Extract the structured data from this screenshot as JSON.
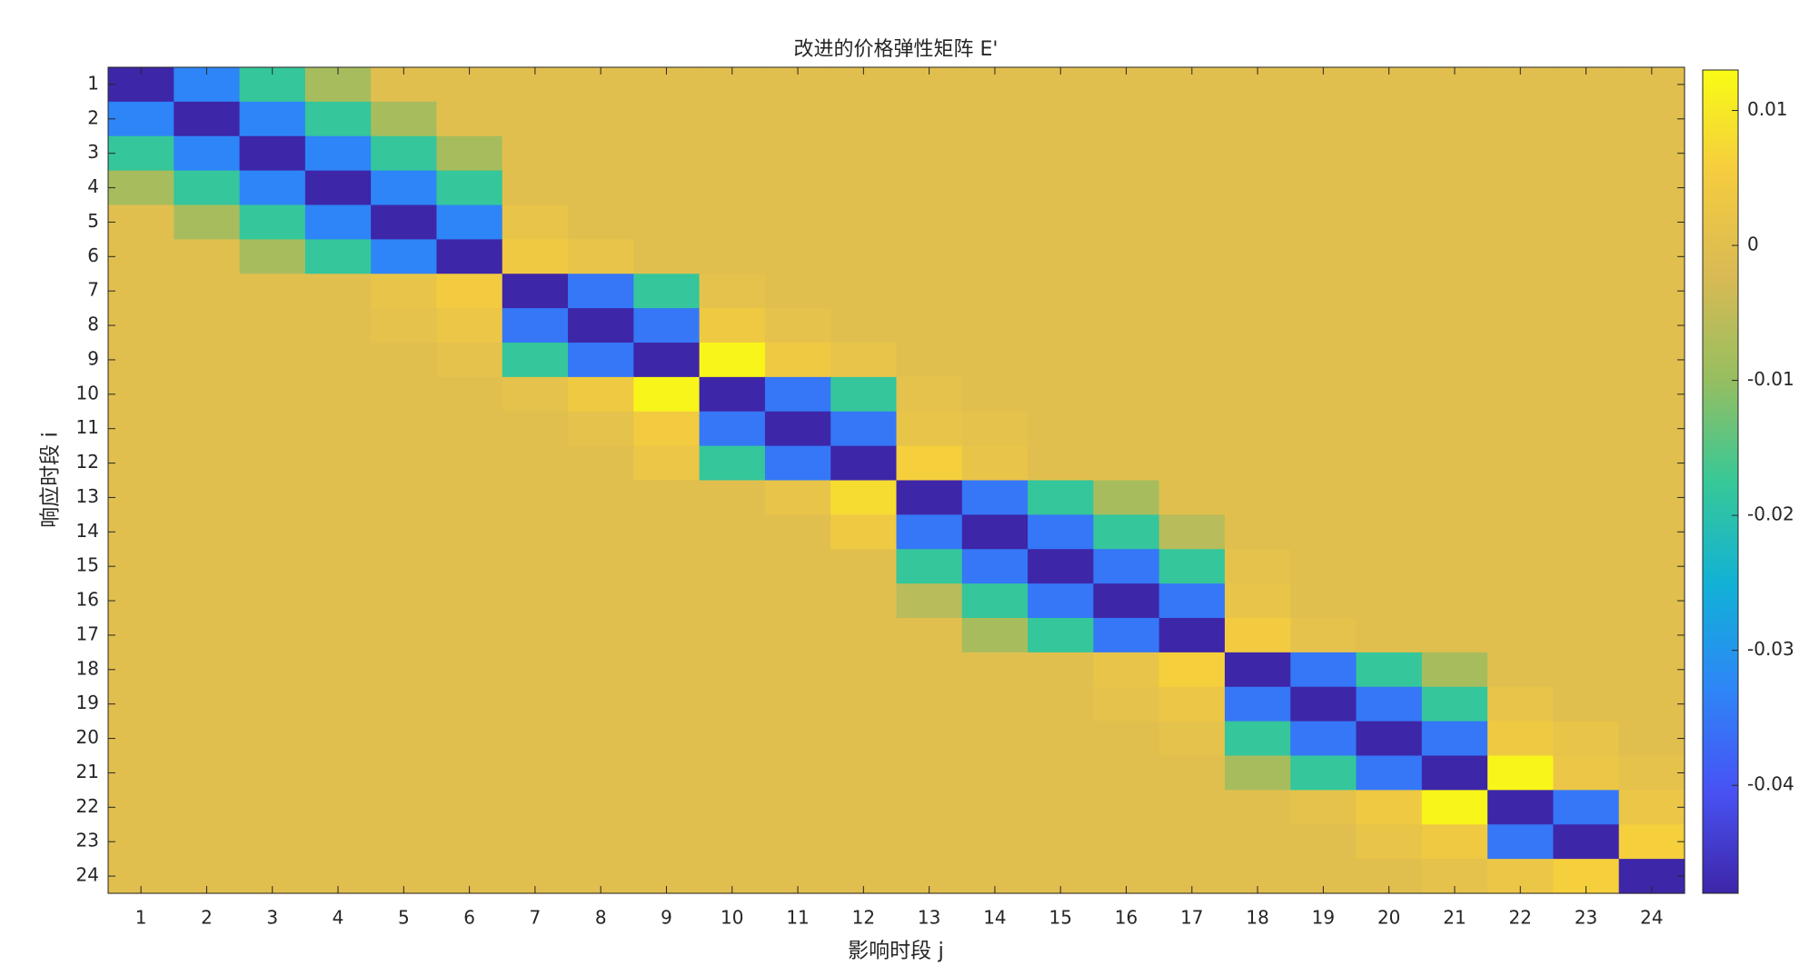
{
  "chart_data": {
    "type": "heatmap",
    "title": "改进的价格弹性矩阵 E'",
    "x_label": "影响时段 j",
    "y_label": "响应时段 i",
    "x_categories": [
      1,
      2,
      3,
      4,
      5,
      6,
      7,
      8,
      9,
      10,
      11,
      12,
      13,
      14,
      15,
      16,
      17,
      18,
      19,
      20,
      21,
      22,
      23,
      24
    ],
    "y_categories": [
      1,
      2,
      3,
      4,
      5,
      6,
      7,
      8,
      9,
      10,
      11,
      12,
      13,
      14,
      15,
      16,
      17,
      18,
      19,
      20,
      21,
      22,
      23,
      24
    ],
    "colormap": "parula",
    "clim": [
      -0.048,
      0.013
    ],
    "colorbar_ticks": [
      0.01,
      0,
      -0.01,
      -0.02,
      -0.03,
      -0.04
    ],
    "values": [
      [
        -0.048,
        -0.033,
        -0.018,
        -0.008,
        0,
        0,
        0,
        0,
        0,
        0,
        0,
        0,
        0,
        0,
        0,
        0,
        0,
        0,
        0,
        0,
        0,
        0,
        0,
        0
      ],
      [
        -0.033,
        -0.048,
        -0.033,
        -0.018,
        -0.008,
        0,
        0,
        0,
        0,
        0,
        0,
        0,
        0,
        0,
        0,
        0,
        0,
        0,
        0,
        0,
        0,
        0,
        0,
        0
      ],
      [
        -0.018,
        -0.033,
        -0.048,
        -0.033,
        -0.018,
        -0.008,
        0,
        0,
        0,
        0,
        0,
        0,
        0,
        0,
        0,
        0,
        0,
        0,
        0,
        0,
        0,
        0,
        0,
        0
      ],
      [
        -0.008,
        -0.018,
        -0.033,
        -0.048,
        -0.033,
        -0.018,
        0,
        0,
        0,
        0,
        0,
        0,
        0,
        0,
        0,
        0,
        0,
        0,
        0,
        0,
        0,
        0,
        0,
        0
      ],
      [
        0,
        -0.008,
        -0.018,
        -0.033,
        -0.048,
        -0.033,
        0.002,
        0,
        0,
        0,
        0,
        0,
        0,
        0,
        0,
        0,
        0,
        0,
        0,
        0,
        0,
        0,
        0,
        0
      ],
      [
        0,
        0,
        -0.008,
        -0.018,
        -0.033,
        -0.048,
        0.004,
        0.002,
        0,
        0,
        0,
        0,
        0,
        0,
        0,
        0,
        0,
        0,
        0,
        0,
        0,
        0,
        0,
        0
      ],
      [
        0,
        0,
        0,
        0,
        0.002,
        0.005,
        -0.048,
        -0.035,
        -0.018,
        0.001,
        0,
        0,
        0,
        0,
        0,
        0,
        0,
        0,
        0,
        0,
        0,
        0,
        0,
        0
      ],
      [
        0,
        0,
        0,
        0,
        0.001,
        0.003,
        -0.035,
        -0.048,
        -0.035,
        0.004,
        0.001,
        0,
        0,
        0,
        0,
        0,
        0,
        0,
        0,
        0,
        0,
        0,
        0,
        0
      ],
      [
        0,
        0,
        0,
        0,
        0,
        0.001,
        -0.018,
        -0.035,
        -0.048,
        0.012,
        0.004,
        0.002,
        0,
        0,
        0,
        0,
        0,
        0,
        0,
        0,
        0,
        0,
        0,
        0
      ],
      [
        0,
        0,
        0,
        0,
        0,
        0,
        0.001,
        0.004,
        0.012,
        -0.048,
        -0.035,
        -0.018,
        0.001,
        0,
        0,
        0,
        0,
        0,
        0,
        0,
        0,
        0,
        0,
        0
      ],
      [
        0,
        0,
        0,
        0,
        0,
        0,
        0,
        0.001,
        0.005,
        -0.035,
        -0.048,
        -0.035,
        0.002,
        0.001,
        0,
        0,
        0,
        0,
        0,
        0,
        0,
        0,
        0,
        0
      ],
      [
        0,
        0,
        0,
        0,
        0,
        0,
        0,
        0,
        0.003,
        -0.018,
        -0.035,
        -0.048,
        0.006,
        0.002,
        0,
        0,
        0,
        0,
        0,
        0,
        0,
        0,
        0,
        0
      ],
      [
        0,
        0,
        0,
        0,
        0,
        0,
        0,
        0,
        0,
        0,
        0.002,
        0.008,
        -0.048,
        -0.035,
        -0.018,
        -0.008,
        0,
        0,
        0,
        0,
        0,
        0,
        0,
        0
      ],
      [
        0,
        0,
        0,
        0,
        0,
        0,
        0,
        0,
        0,
        0,
        0,
        0.004,
        -0.035,
        -0.048,
        -0.035,
        -0.018,
        -0.006,
        0,
        0,
        0,
        0,
        0,
        0,
        0
      ],
      [
        0,
        0,
        0,
        0,
        0,
        0,
        0,
        0,
        0,
        0,
        0,
        0,
        -0.018,
        -0.035,
        -0.048,
        -0.035,
        -0.018,
        0.001,
        0,
        0,
        0,
        0,
        0,
        0
      ],
      [
        0,
        0,
        0,
        0,
        0,
        0,
        0,
        0,
        0,
        0,
        0,
        0,
        -0.006,
        -0.018,
        -0.035,
        -0.048,
        -0.035,
        0.002,
        0,
        0,
        0,
        0,
        0,
        0
      ],
      [
        0,
        0,
        0,
        0,
        0,
        0,
        0,
        0,
        0,
        0,
        0,
        0,
        0,
        -0.008,
        -0.018,
        -0.035,
        -0.048,
        0.005,
        0.001,
        0,
        0,
        0,
        0,
        0
      ],
      [
        0,
        0,
        0,
        0,
        0,
        0,
        0,
        0,
        0,
        0,
        0,
        0,
        0,
        0,
        0,
        0.002,
        0.006,
        -0.048,
        -0.035,
        -0.018,
        -0.008,
        0,
        0,
        0
      ],
      [
        0,
        0,
        0,
        0,
        0,
        0,
        0,
        0,
        0,
        0,
        0,
        0,
        0,
        0,
        0,
        0.001,
        0.003,
        -0.035,
        -0.048,
        -0.035,
        -0.018,
        0.002,
        0,
        0
      ],
      [
        0,
        0,
        0,
        0,
        0,
        0,
        0,
        0,
        0,
        0,
        0,
        0,
        0,
        0,
        0,
        0,
        0.001,
        -0.018,
        -0.035,
        -0.048,
        -0.035,
        0.004,
        0.002,
        0
      ],
      [
        0,
        0,
        0,
        0,
        0,
        0,
        0,
        0,
        0,
        0,
        0,
        0,
        0,
        0,
        0,
        0,
        0,
        -0.008,
        -0.018,
        -0.035,
        -0.048,
        0.012,
        0.003,
        0.001
      ],
      [
        0,
        0,
        0,
        0,
        0,
        0,
        0,
        0,
        0,
        0,
        0,
        0,
        0,
        0,
        0,
        0,
        0,
        0,
        0.001,
        0.004,
        0.012,
        -0.048,
        -0.035,
        0.003
      ],
      [
        0,
        0,
        0,
        0,
        0,
        0,
        0,
        0,
        0,
        0,
        0,
        0,
        0,
        0,
        0,
        0,
        0,
        0,
        0,
        0.002,
        0.004,
        -0.035,
        -0.048,
        0.006
      ],
      [
        0,
        0,
        0,
        0,
        0,
        0,
        0,
        0,
        0,
        0,
        0,
        0,
        0,
        0,
        0,
        0,
        0,
        0,
        0,
        0,
        0.001,
        0.003,
        0.006,
        -0.048
      ]
    ]
  }
}
